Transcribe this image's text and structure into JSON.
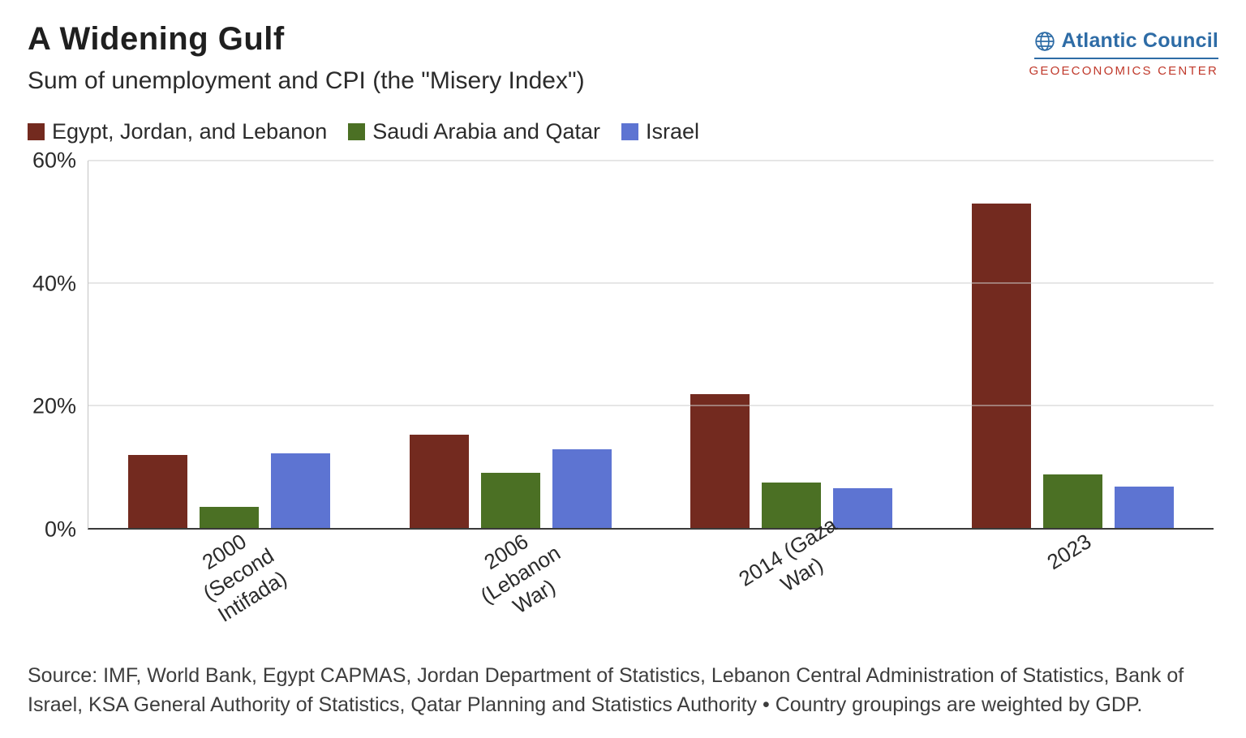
{
  "header": {
    "title": "A Widening Gulf",
    "subtitle": "Sum of unemployment and CPI (the \"Misery Index\")",
    "logo": {
      "name": "Atlantic Council",
      "sub": "GEOECONOMICS CENTER",
      "blue": "#2e6ca6",
      "red": "#c0392b"
    }
  },
  "chart_data": {
    "type": "bar",
    "title": "A Widening Gulf",
    "subtitle": "Sum of unemployment and CPI (the \"Misery Index\")",
    "categories": [
      "2000 (Second Intifada)",
      "2006 (Lebanon War)",
      "2014 (Gaza War)",
      "2023"
    ],
    "categories_display": [
      [
        "2000",
        "(Second",
        "Intifada)"
      ],
      [
        "2006",
        "(Lebanon",
        "War)"
      ],
      [
        "2014 (Gaza",
        "War)"
      ],
      [
        "2023"
      ]
    ],
    "series": [
      {
        "name": "Egypt, Jordan, and Lebanon",
        "color": "#732a1f",
        "values": [
          11.9,
          15.2,
          21.9,
          53.0
        ]
      },
      {
        "name": "Saudi Arabia and Qatar",
        "color": "#4b7024",
        "values": [
          3.5,
          9.0,
          7.4,
          8.7
        ]
      },
      {
        "name": "Israel",
        "color": "#5d74d2",
        "values": [
          12.2,
          12.8,
          6.5,
          6.8
        ]
      }
    ],
    "ylabel": "",
    "xlabel": "",
    "ylim": [
      0,
      60
    ],
    "yticks": [
      "0%",
      "20%",
      "40%",
      "60%"
    ],
    "ytick_values": [
      0,
      20,
      40,
      60
    ],
    "grid": true,
    "legend_position": "top-left",
    "unit": "%"
  },
  "footer": {
    "source": "Source: IMF, World Bank, Egypt CAPMAS, Jordan Department of Statistics, Lebanon Central Administration of Statistics, Bank of Israel, KSA General Authority of Statistics, Qatar Planning and Statistics Authority • Country groupings are weighted by GDP."
  }
}
